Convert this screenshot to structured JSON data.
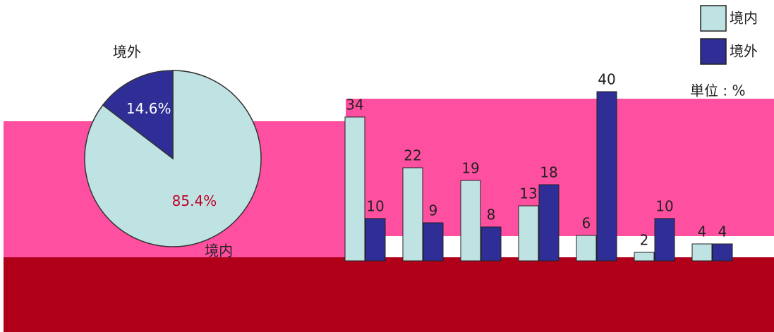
{
  "chart_data": [
    {
      "type": "pie",
      "categories": [
        "境内",
        "境外"
      ],
      "values": [
        85.4,
        14.6
      ],
      "value_labels": [
        "85.4%",
        "14.6%"
      ],
      "colors": [
        "#bfe3e3",
        "#2e2e96"
      ]
    },
    {
      "type": "bar",
      "unit": "単位 : %",
      "categories": [
        null,
        null,
        null,
        null,
        null,
        null,
        null
      ],
      "series": [
        {
          "name": "境内",
          "color": "#bfe3e3",
          "values": [
            34,
            22,
            19,
            13,
            6,
            2,
            4
          ]
        },
        {
          "name": "境外",
          "color": "#2e2e96",
          "values": [
            10,
            9,
            8,
            18,
            40,
            10,
            4
          ]
        }
      ],
      "ylim": [
        0,
        45
      ],
      "legend": "top-right"
    }
  ]
}
